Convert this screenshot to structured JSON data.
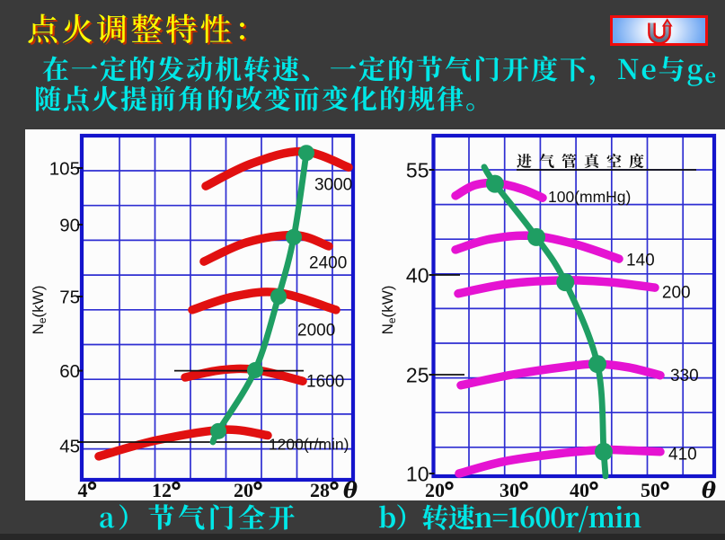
{
  "page": {
    "background": "#3a3a3a",
    "panel_background": "#fcfcfc"
  },
  "title": {
    "text": "点火调整特性：",
    "color": "#ffff00",
    "shadow_color": "#c93100"
  },
  "return_button": {
    "icon": "u-turn-arrow-icon",
    "border_color": "#ee0b0b",
    "fill": "#a8ccfa",
    "arrow_color": "#e60c0c"
  },
  "intro": {
    "color": "#00e7e7",
    "line1_segments": [
      {
        "t": "在一定的发动机转速、一定的节气门开度下，Ne与g"
      },
      {
        "t": "e",
        "sub": true
      }
    ],
    "line2": "随点火提前角的改变而变化的规律。"
  },
  "captions": {
    "a": "a）节气门全开",
    "b": "b）转速n=1600r/min"
  },
  "chart_data": [
    {
      "id": "a",
      "type": "line",
      "title": "",
      "xlabel": "θ",
      "ylabel_segments": [
        {
          "t": "N"
        },
        {
          "t": "e",
          "sub": true
        },
        {
          "t": "(kW)"
        }
      ],
      "x_tick_suffix": "°",
      "x_ticks": [
        4,
        12,
        20,
        28
      ],
      "y_ticks": [
        45,
        60,
        75,
        90,
        105
      ],
      "x_range": [
        3.4,
        31.0
      ],
      "y_range": [
        37,
        113.5
      ],
      "grid": true,
      "series_color": "#e11010",
      "optimum_color": "#1f9e63",
      "series": [
        {
          "name": "1200(r/min)",
          "points": [
            [
              5.18,
              42.0
            ],
            [
              11.09,
              45.4
            ],
            [
              17.71,
              47.6
            ],
            [
              22.07,
              46.4
            ]
          ],
          "label": "1200(r/min)",
          "label_at": [
            22.16,
            44.6
          ]
        },
        {
          "name": "1600",
          "points": [
            [
              13.85,
              58.6
            ],
            [
              17.27,
              60.1
            ],
            [
              20.75,
              60.2
            ],
            [
              25.74,
              57.8
            ]
          ],
          "label": "1600",
          "label_at": [
            26.12,
            57.8
          ]
        },
        {
          "name": "2000",
          "points": [
            [
              14.55,
              72.3
            ],
            [
              18.59,
              75.0
            ],
            [
              23.2,
              75.8
            ],
            [
              29.22,
              72.3
            ]
          ],
          "label": "2000",
          "label_at": [
            25.18,
            68.3
          ]
        },
        {
          "name": "2400",
          "points": [
            [
              15.69,
              82.3
            ],
            [
              19.9,
              86.3
            ],
            [
              24.99,
              87.8
            ],
            [
              28.47,
              85.5
            ]
          ],
          "label": "2400",
          "label_at": [
            26.4,
            82.1
          ]
        },
        {
          "name": "3000",
          "points": [
            [
              15.87,
              100.2
            ],
            [
              20.38,
              106.2
            ],
            [
              25.74,
              109.4
            ],
            [
              30.54,
              105.2
            ]
          ],
          "label": "3000",
          "label_at": [
            26.96,
            100.7
          ]
        }
      ],
      "optimum_curve": {
        "points": [
          [
            16.57,
            45.0
          ],
          [
            17.1,
            47.3
          ],
          [
            20.75,
            60.1
          ],
          [
            23.2,
            75.0
          ],
          [
            24.8,
            87.4
          ],
          [
            26.12,
            109.0
          ]
        ],
        "marker_indices": [
          1,
          2,
          3,
          4,
          5
        ]
      }
    },
    {
      "id": "b",
      "type": "line",
      "title": "进气管真空度",
      "title_at": [
        40,
        56.2
      ],
      "xlabel": "θ",
      "ylabel_segments": [
        {
          "t": "N"
        },
        {
          "t": "e",
          "sub": true
        },
        {
          "t": "(kW)"
        }
      ],
      "x_tick_suffix": "°",
      "x_ticks": [
        20,
        30,
        40,
        50
      ],
      "y_ticks": [
        10,
        25,
        40,
        55
      ],
      "x_range": [
        19.2,
        58.4
      ],
      "y_range": [
        9.6,
        60.0
      ],
      "grid": true,
      "series_color": "#e513d2",
      "optimum_color": "#1f9e63",
      "series": [
        {
          "name": "100(mmHg)",
          "points": [
            [
              22.17,
              51.3
            ],
            [
              24.7,
              52.8
            ],
            [
              27.46,
              53.1
            ],
            [
              31.03,
              52.3
            ],
            [
              34.1,
              51.0
            ]
          ],
          "label": "100(mmHg)",
          "label_at": [
            34.87,
            51.2
          ]
        },
        {
          "name": "140",
          "points": [
            [
              22.17,
              43.6
            ],
            [
              26.75,
              45.1
            ],
            [
              32.44,
              45.6
            ],
            [
              38.73,
              44.4
            ],
            [
              44.94,
              42.3
            ]
          ],
          "label": "140",
          "label_at": [
            45.95,
            42.2
          ]
        },
        {
          "name": "200",
          "points": [
            [
              22.53,
              37.2
            ],
            [
              29.16,
              38.65
            ],
            [
              37.34,
              39.2
            ],
            [
              43.8,
              38.9
            ],
            [
              50.0,
              38.1
            ]
          ],
          "label": "200",
          "label_at": [
            51.0,
            37.4
          ]
        },
        {
          "name": "330",
          "points": [
            [
              22.89,
              23.4
            ],
            [
              29.77,
              25.0
            ],
            [
              37.47,
              26.2
            ],
            [
              41.9,
              26.6
            ],
            [
              46.33,
              26.1
            ],
            [
              50.76,
              24.9
            ]
          ],
          "label": "330",
          "label_at": [
            52.15,
            24.9
          ]
        },
        {
          "name": "410",
          "points": [
            [
              22.65,
              10.0
            ],
            [
              28.56,
              11.8
            ],
            [
              36.2,
              13.0
            ],
            [
              42.53,
              13.6
            ],
            [
              46.33,
              13.5
            ],
            [
              50.76,
              13.3
            ]
          ],
          "label": "410",
          "label_at": [
            51.9,
            13.0
          ]
        }
      ],
      "optimum_curve": {
        "points": [
          [
            26.02,
            55.4
          ],
          [
            27.46,
            53.0
          ],
          [
            33.21,
            45.4
          ],
          [
            37.34,
            38.9
          ],
          [
            41.9,
            26.6
          ],
          [
            42.78,
            13.3
          ],
          [
            43.04,
            9.6
          ]
        ],
        "marker_indices": [
          1,
          2,
          3,
          4,
          5
        ]
      }
    }
  ]
}
